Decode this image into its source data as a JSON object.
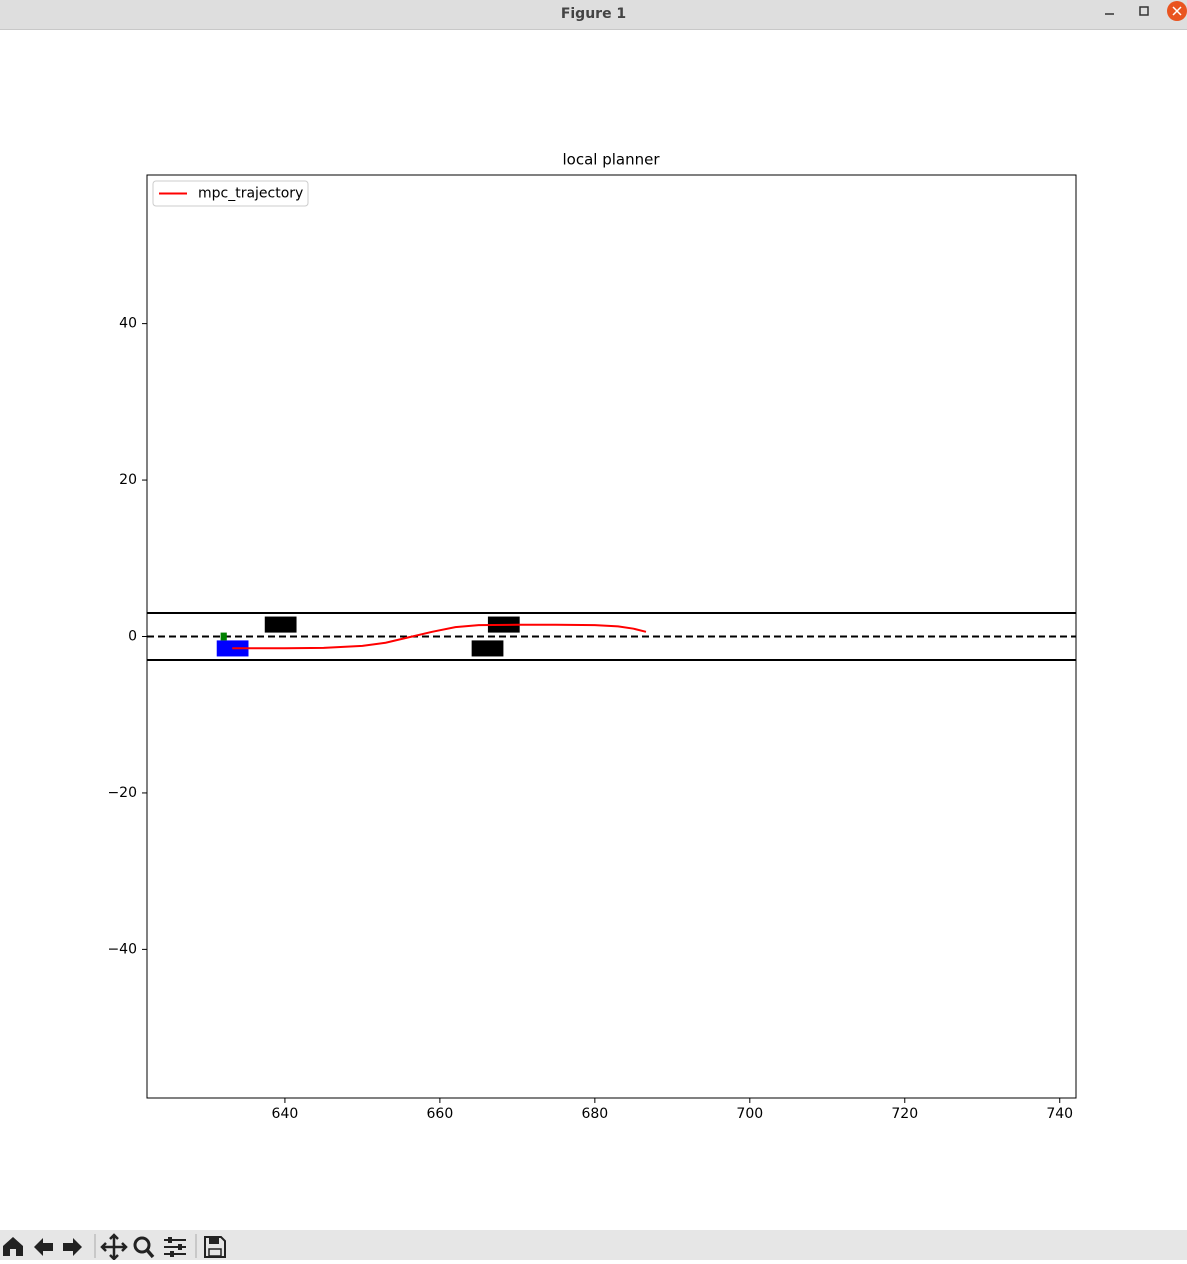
{
  "window": {
    "title": "Figure 1"
  },
  "chart_data": {
    "type": "line",
    "title": "local planner",
    "series": [
      {
        "name": "mpc_trajectory",
        "color": "#ff0000",
        "x": [
          633.2,
          640,
          645,
          650,
          653,
          656,
          659,
          662,
          665,
          670,
          675,
          680,
          683,
          685,
          686.6
        ],
        "values": [
          -1.5,
          -1.5,
          -1.45,
          -1.2,
          -0.8,
          -0.1,
          0.6,
          1.2,
          1.45,
          1.5,
          1.5,
          1.45,
          1.3,
          1.0,
          0.6
        ]
      }
    ],
    "hlines": [
      {
        "y": 3,
        "style": "solid",
        "color": "#000000"
      },
      {
        "y": -3,
        "style": "solid",
        "color": "#000000"
      },
      {
        "y": 0,
        "style": "dashed",
        "color": "#000000"
      }
    ],
    "rectangles": [
      {
        "x": 637.4,
        "y": 0.5,
        "width": 4.1,
        "height": 2.05,
        "color": "#000000"
      },
      {
        "x": 666.2,
        "y": 0.5,
        "width": 4.1,
        "height": 2.05,
        "color": "#000000"
      },
      {
        "x": 664.1,
        "y": -2.55,
        "width": 4.1,
        "height": 2.05,
        "color": "#000000"
      },
      {
        "x": 631.2,
        "y": -2.55,
        "width": 4.1,
        "height": 2.05,
        "color": "#0000ff"
      },
      {
        "x": 631.7,
        "y": -0.5,
        "width": 0.8,
        "height": 1.0,
        "color": "#008000"
      }
    ],
    "xlim": [
      622.2,
      742.1
    ],
    "ylim": [
      -59,
      59
    ],
    "xticks": [
      640,
      660,
      680,
      700,
      720,
      740
    ],
    "yticks": [
      {
        "value": -40,
        "label": "−40"
      },
      {
        "value": -20,
        "label": "−20"
      },
      0,
      20,
      40
    ],
    "legend": "upper left",
    "grid": false
  }
}
